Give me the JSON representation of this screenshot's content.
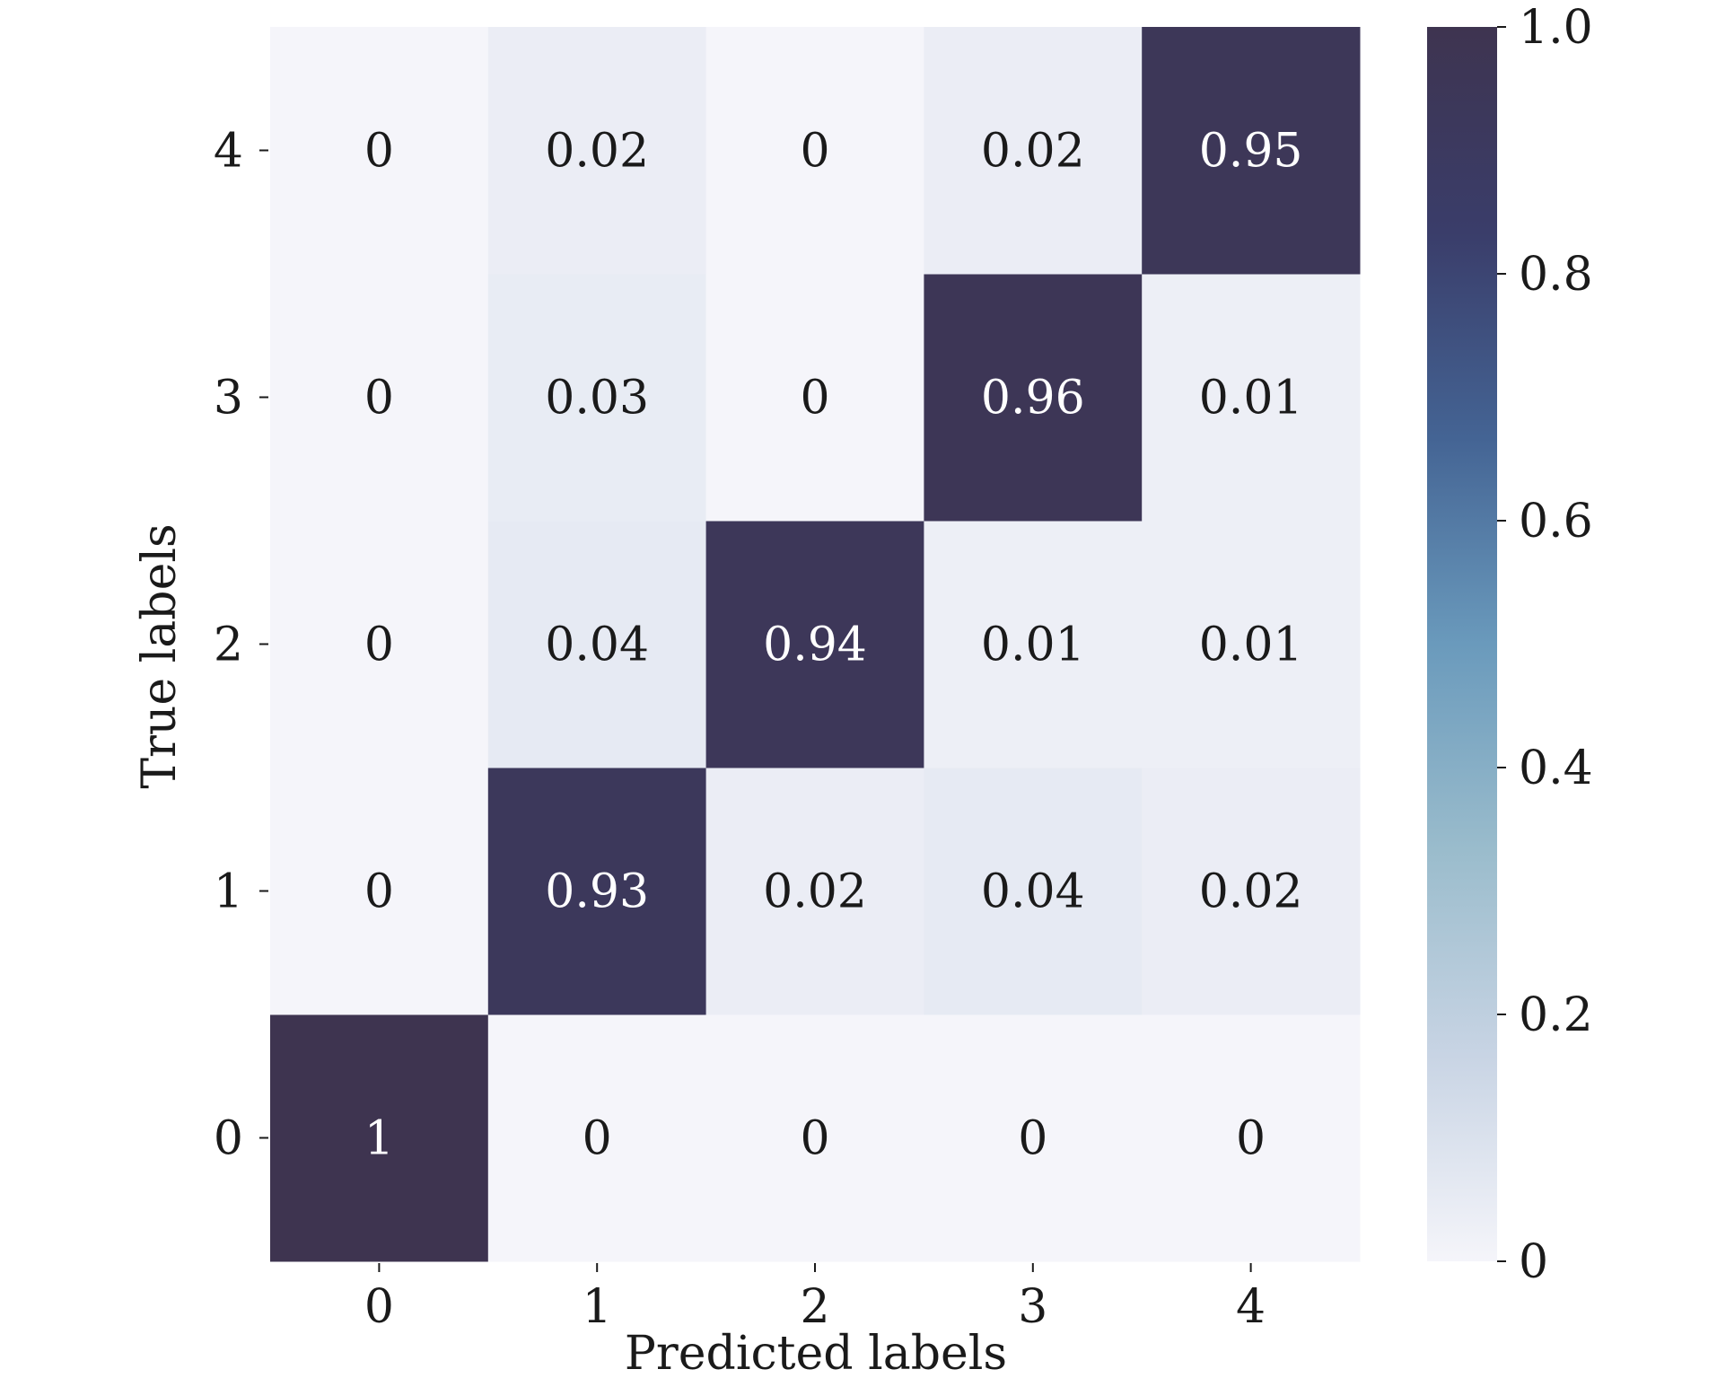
{
  "chart_data": {
    "type": "heatmap",
    "xlabel": "Predicted labels",
    "ylabel": "True labels",
    "x_categories": [
      "0",
      "1",
      "2",
      "3",
      "4"
    ],
    "y_categories": [
      "0",
      "1",
      "2",
      "3",
      "4"
    ],
    "matrix": [
      [
        1,
        0,
        0,
        0,
        0
      ],
      [
        0,
        0.93,
        0.02,
        0.04,
        0.02
      ],
      [
        0,
        0.04,
        0.94,
        0.01,
        0.01
      ],
      [
        0,
        0.03,
        0,
        0.96,
        0.01
      ],
      [
        0,
        0.02,
        0,
        0.02,
        0.95
      ]
    ],
    "value_range": [
      0,
      1.0
    ],
    "colorbar": {
      "ticks": [
        0,
        0.2,
        0.4,
        0.6,
        0.8,
        1.0
      ],
      "tick_labels": [
        "0",
        "0.2",
        "0.4",
        "0.6",
        "0.8",
        "1.0"
      ]
    },
    "colormap": [
      "#f5f5fa",
      "#c8d4e4",
      "#9abccc",
      "#6a9abc",
      "#446494",
      "#3a3d6a",
      "#3e3450"
    ],
    "grid": false
  }
}
